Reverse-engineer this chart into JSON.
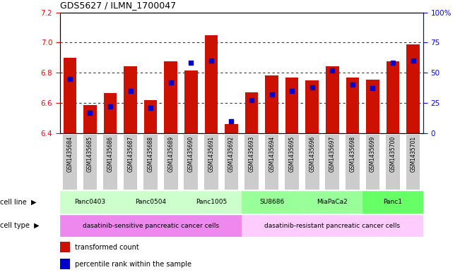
{
  "title": "GDS5627 / ILMN_1700047",
  "samples": [
    "GSM1435684",
    "GSM1435685",
    "GSM1435686",
    "GSM1435687",
    "GSM1435688",
    "GSM1435689",
    "GSM1435690",
    "GSM1435691",
    "GSM1435692",
    "GSM1435693",
    "GSM1435694",
    "GSM1435695",
    "GSM1435696",
    "GSM1435697",
    "GSM1435698",
    "GSM1435699",
    "GSM1435700",
    "GSM1435701"
  ],
  "bar_heights": [
    6.9,
    6.585,
    6.665,
    6.845,
    6.62,
    6.875,
    6.815,
    7.05,
    6.46,
    6.67,
    6.78,
    6.77,
    6.75,
    6.845,
    6.77,
    6.755,
    6.875,
    6.99
  ],
  "percentile_values": [
    45,
    17,
    22,
    35,
    21,
    42,
    58,
    60,
    10,
    27,
    32,
    35,
    38,
    52,
    40,
    37,
    58,
    60
  ],
  "ylim_left": [
    6.4,
    7.2
  ],
  "ylim_right": [
    0,
    100
  ],
  "bar_color": "#cc1100",
  "percentile_color": "#0000cc",
  "cell_lines": [
    {
      "label": "Panc0403",
      "start": 0,
      "end": 2,
      "color": "#ccffcc"
    },
    {
      "label": "Panc0504",
      "start": 3,
      "end": 5,
      "color": "#ccffcc"
    },
    {
      "label": "Panc1005",
      "start": 6,
      "end": 8,
      "color": "#ccffcc"
    },
    {
      "label": "SU8686",
      "start": 9,
      "end": 11,
      "color": "#99ff99"
    },
    {
      "label": "MiaPaCa2",
      "start": 12,
      "end": 14,
      "color": "#99ff99"
    },
    {
      "label": "Panc1",
      "start": 15,
      "end": 17,
      "color": "#66ff66"
    }
  ],
  "cell_types": [
    {
      "label": "dasatinib-sensitive pancreatic cancer cells",
      "start": 0,
      "end": 8,
      "color": "#ee88ee"
    },
    {
      "label": "dasatinib-resistant pancreatic cancer cells",
      "start": 9,
      "end": 17,
      "color": "#ffccff"
    }
  ],
  "legend_items": [
    {
      "label": "transformed count",
      "color": "#cc1100"
    },
    {
      "label": "percentile rank within the sample",
      "color": "#0000cc"
    }
  ],
  "bar_width": 0.65,
  "tick_label_bg": "#cccccc",
  "chart_bg": "#ffffff"
}
